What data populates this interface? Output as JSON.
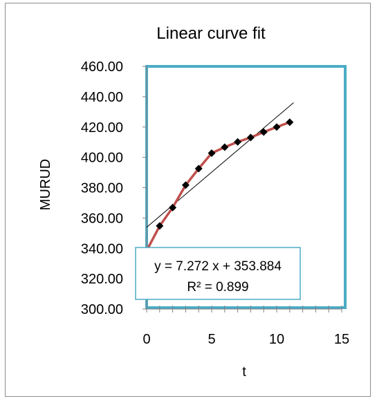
{
  "chart_data": {
    "type": "scatter",
    "title": "Linear curve fit",
    "xlabel": "t",
    "ylabel": "MURUD",
    "xlim": [
      0,
      15
    ],
    "ylim": [
      300,
      460
    ],
    "x_ticks": [
      "0",
      "5",
      "10",
      "15"
    ],
    "y_ticks": [
      "300.00",
      "320.00",
      "340.00",
      "360.00",
      "380.00",
      "400.00",
      "420.00",
      "440.00",
      "460.00"
    ],
    "series": [
      {
        "x": [
          0,
          1,
          2,
          3,
          4,
          5,
          6,
          7,
          8,
          9,
          10,
          11
        ],
        "y": [
          338.5,
          354.8,
          366.9,
          381.7,
          392.6,
          402.8,
          406.7,
          410.2,
          413.1,
          416.7,
          420.0,
          423.2
        ],
        "line_color": "#c0504d",
        "marker_color": "#000000",
        "marker": "diamond"
      }
    ],
    "trendline": {
      "slope": 7.272,
      "intercept": 353.884,
      "x_range": [
        0,
        11.3
      ],
      "color": "#000000",
      "equation": "y = 7.272 x + 353.884",
      "r_squared": "R² = 0.899"
    },
    "plot_border_color": "#4bacc6",
    "grid": false,
    "legend": "none"
  }
}
